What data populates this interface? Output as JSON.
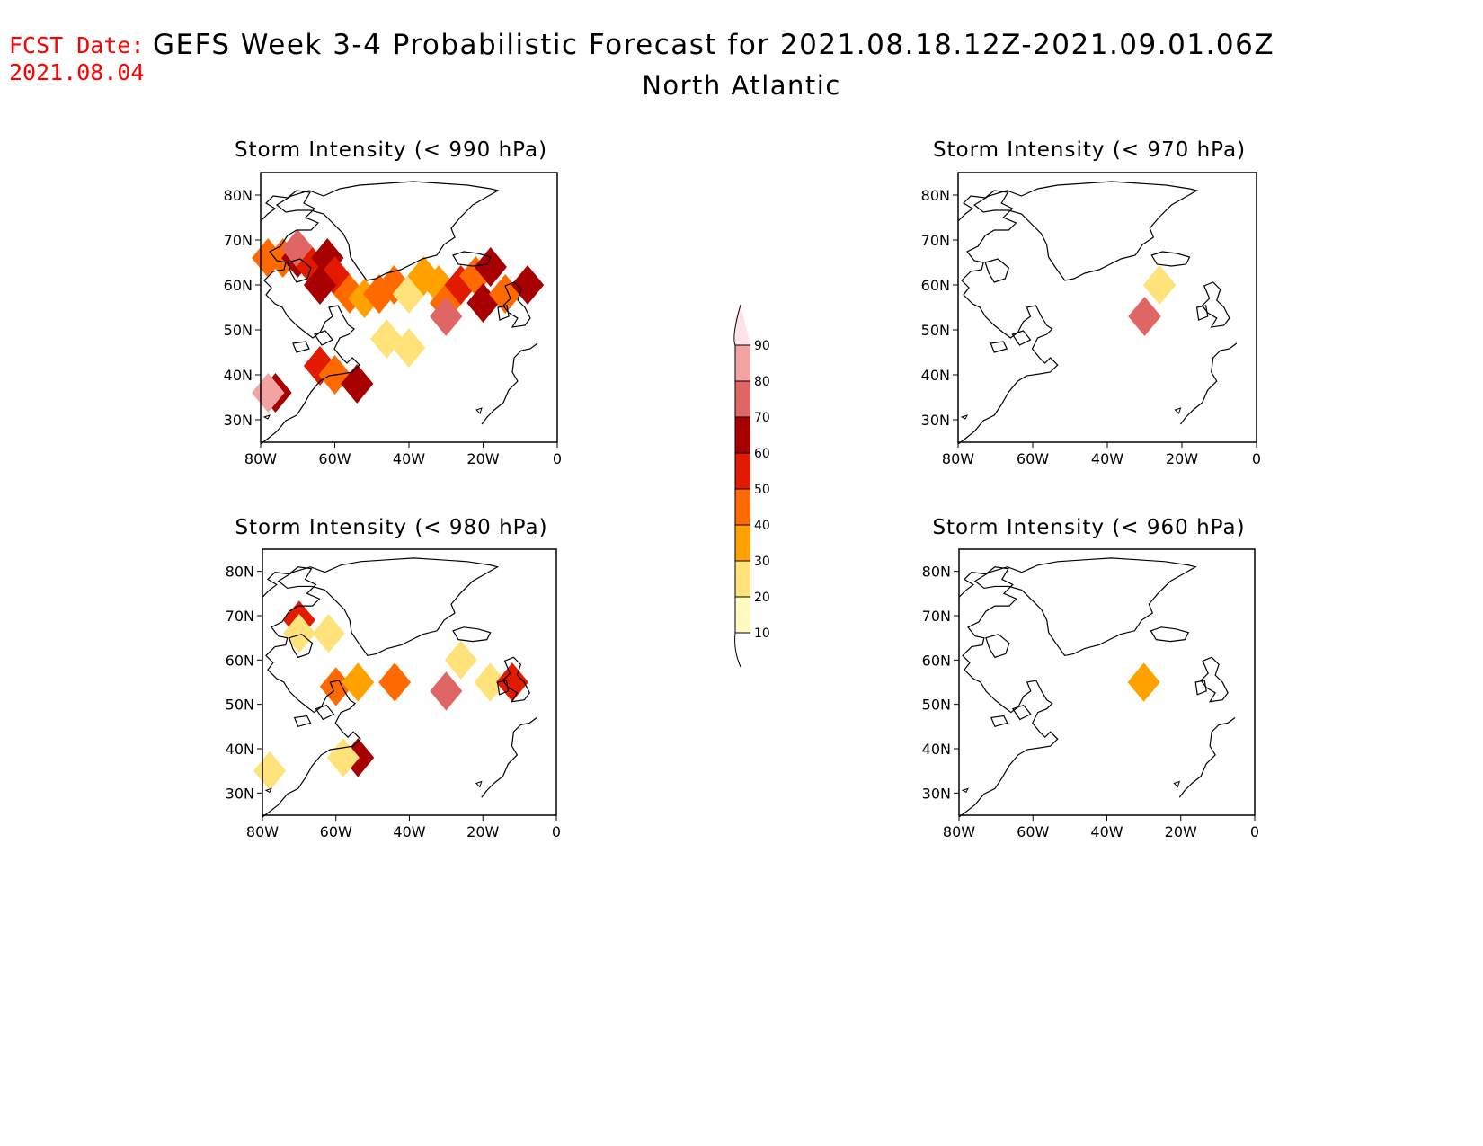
{
  "header": {
    "fcst_label": "FCST Date:",
    "fcst_date": "2021.08.04",
    "title": "GEFS Week 3-4 Probabilistic Forecast for 2021.08.18.12Z-2021.09.01.06Z",
    "region": "North Atlantic"
  },
  "axes": {
    "lon_ticks": [
      "80W",
      "60W",
      "40W",
      "20W",
      "0"
    ],
    "lat_ticks": [
      "80N",
      "70N",
      "60N",
      "50N",
      "40N",
      "30N"
    ]
  },
  "colorbar": {
    "levels": [
      10,
      20,
      30,
      40,
      50,
      60,
      70,
      80,
      90
    ],
    "colors": [
      "#fffac0",
      "#ffe37a",
      "#ffa200",
      "#ff6a00",
      "#e21a00",
      "#a80000",
      "#e06666",
      "#f4a3a3",
      "#ffe3e8"
    ],
    "labels": [
      "10",
      "20",
      "30",
      "40",
      "50",
      "60",
      "70",
      "80",
      "90"
    ]
  },
  "panels": [
    {
      "title": "Storm Intensity (< 990 hPa)",
      "threshold_hpa": 990,
      "cells": [
        {
          "lon": -78,
          "lat": 66,
          "level": 3
        },
        {
          "lon": -74,
          "lat": 66,
          "level": 3
        },
        {
          "lon": -70,
          "lat": 66,
          "level": 5
        },
        {
          "lon": -70,
          "lat": 68,
          "level": 6
        },
        {
          "lon": -66,
          "lat": 64,
          "level": 4
        },
        {
          "lon": -62,
          "lat": 66,
          "level": 5
        },
        {
          "lon": -60,
          "lat": 62,
          "level": 4
        },
        {
          "lon": -64,
          "lat": 60,
          "level": 5
        },
        {
          "lon": -56,
          "lat": 58,
          "level": 3
        },
        {
          "lon": -52,
          "lat": 57,
          "level": 2
        },
        {
          "lon": -48,
          "lat": 58,
          "level": 3
        },
        {
          "lon": -44,
          "lat": 60,
          "level": 3
        },
        {
          "lon": -40,
          "lat": 58,
          "level": 1
        },
        {
          "lon": -36,
          "lat": 62,
          "level": 2
        },
        {
          "lon": -32,
          "lat": 60,
          "level": 2
        },
        {
          "lon": -30,
          "lat": 56,
          "level": 3
        },
        {
          "lon": -30,
          "lat": 53,
          "level": 6
        },
        {
          "lon": -26,
          "lat": 60,
          "level": 4
        },
        {
          "lon": -22,
          "lat": 62,
          "level": 3
        },
        {
          "lon": -20,
          "lat": 56,
          "level": 5
        },
        {
          "lon": -18,
          "lat": 64,
          "level": 5
        },
        {
          "lon": -14,
          "lat": 58,
          "level": 3
        },
        {
          "lon": -8,
          "lat": 60,
          "level": 5
        },
        {
          "lon": -46,
          "lat": 48,
          "level": 1
        },
        {
          "lon": -40,
          "lat": 46,
          "level": 1
        },
        {
          "lon": -64,
          "lat": 42,
          "level": 4
        },
        {
          "lon": -60,
          "lat": 40,
          "level": 3
        },
        {
          "lon": -54,
          "lat": 38,
          "level": 5
        },
        {
          "lon": -76,
          "lat": 36,
          "level": 5
        },
        {
          "lon": -78,
          "lat": 36,
          "level": 7
        }
      ]
    },
    {
      "title": "Storm Intensity (< 970 hPa)",
      "threshold_hpa": 970,
      "cells": [
        {
          "lon": -30,
          "lat": 53,
          "level": 6
        },
        {
          "lon": -26,
          "lat": 60,
          "level": 1
        }
      ]
    },
    {
      "title": "Storm Intensity (< 980 hPa)",
      "threshold_hpa": 980,
      "cells": [
        {
          "lon": -70,
          "lat": 69,
          "level": 4
        },
        {
          "lon": -70,
          "lat": 66,
          "level": 1
        },
        {
          "lon": -62,
          "lat": 66,
          "level": 1
        },
        {
          "lon": -60,
          "lat": 54,
          "level": 3
        },
        {
          "lon": -54,
          "lat": 55,
          "level": 2
        },
        {
          "lon": -44,
          "lat": 55,
          "level": 3
        },
        {
          "lon": -30,
          "lat": 53,
          "level": 6
        },
        {
          "lon": -26,
          "lat": 60,
          "level": 1
        },
        {
          "lon": -18,
          "lat": 55,
          "level": 1
        },
        {
          "lon": -12,
          "lat": 55,
          "level": 4
        },
        {
          "lon": -54,
          "lat": 38,
          "level": 5
        },
        {
          "lon": -58,
          "lat": 38,
          "level": 1
        },
        {
          "lon": -78,
          "lat": 35,
          "level": 1
        }
      ]
    },
    {
      "title": "Storm Intensity (< 960 hPa)",
      "threshold_hpa": 960,
      "cells": [
        {
          "lon": -30,
          "lat": 55,
          "level": 2
        }
      ]
    }
  ]
}
